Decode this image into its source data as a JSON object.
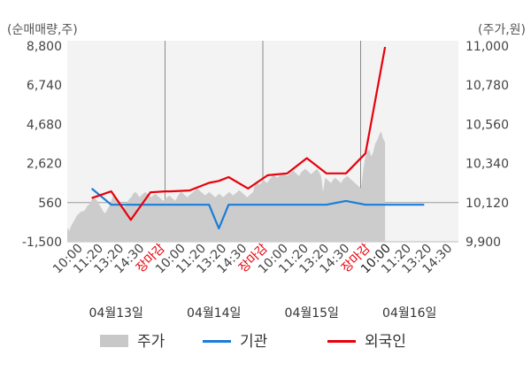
{
  "chart_data": {
    "type": "line",
    "left_unit_label": "(순매매량,주)",
    "right_unit_label": "(주가,원)",
    "left_axis": {
      "min": -1500,
      "max": 8800,
      "ticks": [
        "8,800",
        "6,740",
        "4,680",
        "2,620",
        "560",
        "-1,500"
      ]
    },
    "right_axis": {
      "min": 9900,
      "max": 11000,
      "ticks": [
        "11,000",
        "10,780",
        "10,560",
        "10,340",
        "10,120",
        "9,900"
      ]
    },
    "x_labels": [
      {
        "text": "10:00",
        "style": "normal"
      },
      {
        "text": "11:20",
        "style": "normal"
      },
      {
        "text": "13:20",
        "style": "normal"
      },
      {
        "text": "14:30",
        "style": "normal"
      },
      {
        "text": "장마감",
        "style": "close"
      },
      {
        "text": "10:00",
        "style": "normal"
      },
      {
        "text": "11:20",
        "style": "normal"
      },
      {
        "text": "13:20",
        "style": "normal"
      },
      {
        "text": "14:30",
        "style": "normal"
      },
      {
        "text": "장마감",
        "style": "close"
      },
      {
        "text": "10:00",
        "style": "normal"
      },
      {
        "text": "11:20",
        "style": "normal"
      },
      {
        "text": "13:20",
        "style": "normal"
      },
      {
        "text": "14:30",
        "style": "normal"
      },
      {
        "text": "장마감",
        "style": "close"
      },
      {
        "text": "10:00",
        "style": "last"
      },
      {
        "text": "11:20",
        "style": "normal"
      },
      {
        "text": "13:20",
        "style": "normal"
      },
      {
        "text": "14:30",
        "style": "normal"
      }
    ],
    "dates": [
      "04월13일",
      "04월14일",
      "04월15일",
      "04월16일"
    ],
    "legend": [
      {
        "name": "주가",
        "color": "#c8c8c8",
        "kind": "area"
      },
      {
        "name": "기관",
        "color": "#1a7dd7",
        "kind": "line"
      },
      {
        "name": "외국인",
        "color": "#e8000b",
        "kind": "line"
      }
    ],
    "price_series": {
      "name": "주가",
      "values": [
        9980,
        9960,
        9990,
        10010,
        10030,
        10050,
        10060,
        10070,
        10070,
        10080,
        10100,
        10110,
        10130,
        10150,
        10140,
        10130,
        10110,
        10090,
        10070,
        10060,
        10080,
        10100,
        10130,
        10160,
        10150,
        10140,
        10130,
        10110,
        10090,
        10100,
        10120,
        10140,
        10150,
        10170,
        10180,
        10170,
        10150,
        10160,
        10170,
        10180,
        10170,
        10160,
        10150,
        10160,
        10170,
        10160,
        10150,
        10140,
        10130,
        10140,
        10150,
        10160,
        10150,
        10140,
        10130,
        10150,
        10170,
        10180,
        10170,
        10160,
        10150,
        10160,
        10170,
        10180,
        10190,
        10200,
        10190,
        10180,
        10170,
        10160,
        10170,
        10180,
        10170,
        10160,
        10150,
        10160,
        10170,
        10160,
        10150,
        10160,
        10170,
        10180,
        10170,
        10160,
        10170,
        10180,
        10190,
        10180,
        10170,
        10160,
        10150,
        10160,
        10170,
        10180,
        10230,
        10240,
        10220,
        10230,
        10250,
        10240,
        10230,
        10250,
        10260,
        10280,
        10270,
        10260,
        10270,
        10280,
        10290,
        10280,
        10270,
        10280,
        10290,
        10300,
        10290,
        10280,
        10270,
        10290,
        10300,
        10310,
        10300,
        10290,
        10280,
        10290,
        10300,
        10310,
        10290,
        10270,
        10180,
        10260,
        10250,
        10240,
        10230,
        10250,
        10260,
        10250,
        10240,
        10230,
        10250,
        10260,
        10270,
        10260,
        10250,
        10240,
        10230,
        10220,
        10210,
        10200,
        10300,
        10370,
        10400,
        10420,
        10380,
        10400,
        10450,
        10470,
        10500,
        10520,
        10480,
        10460
      ],
      "start_x": 0,
      "end_x": 3.25
    },
    "series": [
      {
        "name": "기관",
        "x": [
          0.25,
          0.45,
          0.65,
          0.85,
          1.0,
          1.05,
          1.25,
          1.45,
          1.55,
          1.65,
          1.85,
          2.05,
          2.25,
          2.45,
          2.65,
          2.85,
          3.05,
          3.25,
          3.45,
          3.65
        ],
        "values": [
          1300,
          450,
          450,
          450,
          450,
          450,
          450,
          450,
          -800,
          450,
          450,
          450,
          450,
          450,
          450,
          650,
          450,
          450,
          450,
          450
        ]
      },
      {
        "name": "외국인",
        "x": [
          0.25,
          0.45,
          0.65,
          0.85,
          1.0,
          1.05,
          1.25,
          1.45,
          1.55,
          1.65,
          1.85,
          2.05,
          2.25,
          2.45,
          2.65,
          2.85,
          3.05,
          3.25,
          3.45,
          3.65
        ],
        "values": [
          800,
          1150,
          -350,
          1100,
          1150,
          1150,
          1200,
          1600,
          1700,
          1900,
          1300,
          2000,
          2100,
          2900,
          2100,
          2100,
          3150,
          8750,
          null,
          null
        ]
      }
    ]
  }
}
